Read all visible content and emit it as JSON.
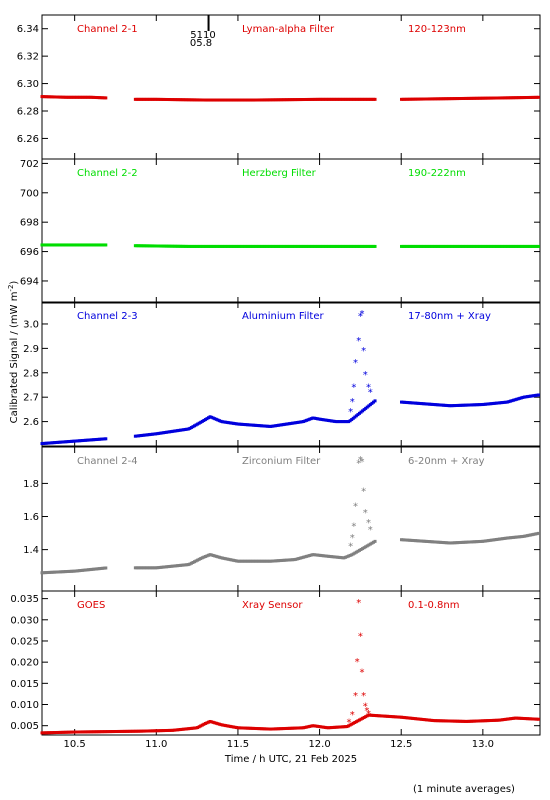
{
  "figure": {
    "ylabel_shared": "Calibrated Signal / (mW m",
    "ylabel_sup": "-2",
    "ylabel_close": ")",
    "xlabel": "Time / h UTC, 21 Feb 2025",
    "footnote": "(1 minute averages)",
    "marker_top": "5110",
    "marker_bottom": "05.8",
    "marker_time": 11.32
  },
  "chart_data": [
    {
      "type": "scatter",
      "channel": "Channel 2-1",
      "filter": "Lyman-alpha Filter",
      "band": "120-123nm",
      "color": "#dd0000",
      "ylim": [
        6.245,
        6.35
      ],
      "yticks": [
        6.26,
        6.28,
        6.3,
        6.32,
        6.34
      ],
      "yticklabels": [
        "6.26",
        "6.28",
        "6.30",
        "6.32",
        "6.34"
      ],
      "xlim": [
        10.3,
        13.35
      ],
      "gaps": [
        [
          10.7,
          10.87
        ],
        [
          12.34,
          12.5
        ]
      ],
      "series": [
        {
          "x": [
            10.3,
            10.45,
            10.6,
            10.7,
            10.87,
            11.0,
            11.3,
            11.6,
            12.0,
            12.34,
            12.5,
            12.8,
            13.1,
            13.35
          ],
          "y": [
            6.2905,
            6.29,
            6.29,
            6.2895,
            6.2885,
            6.2885,
            6.288,
            6.288,
            6.2885,
            6.2885,
            6.2885,
            6.289,
            6.2895,
            6.29
          ]
        }
      ]
    },
    {
      "type": "scatter",
      "channel": "Channel 2-2",
      "filter": "Herzberg Filter",
      "band": "190-222nm",
      "color": "#00dd00",
      "ylim": [
        692.5,
        702.3
      ],
      "yticks": [
        694,
        696,
        698,
        700,
        702
      ],
      "yticklabels": [
        "694",
        "696",
        "698",
        "700",
        "702"
      ],
      "xlim": [
        10.3,
        13.35
      ],
      "gaps": [
        [
          10.7,
          10.87
        ],
        [
          12.34,
          12.5
        ]
      ],
      "series": [
        {
          "x": [
            10.3,
            10.5,
            10.7,
            10.87,
            11.2,
            11.6,
            12.0,
            12.34,
            12.5,
            12.9,
            13.35
          ],
          "y": [
            696.45,
            696.45,
            696.45,
            696.4,
            696.35,
            696.35,
            696.35,
            696.35,
            696.35,
            696.35,
            696.35
          ]
        }
      ]
    },
    {
      "type": "scatter",
      "channel": "Channel 2-3",
      "filter": "Aluminium Filter",
      "band": "17-80nm + Xray",
      "color": "#0000dd",
      "ylim": [
        2.5,
        3.09
      ],
      "yticks": [
        2.6,
        2.7,
        2.8,
        2.9,
        3.0
      ],
      "yticklabels": [
        "2.6",
        "2.7",
        "2.8",
        "2.9",
        "3.0"
      ],
      "xlim": [
        10.3,
        13.35
      ],
      "gaps": [
        [
          10.7,
          10.87
        ],
        [
          12.34,
          12.5
        ]
      ],
      "series": [
        {
          "x": [
            10.3,
            10.5,
            10.7,
            10.87,
            11.0,
            11.2,
            11.28,
            11.33,
            11.4,
            11.5,
            11.7,
            11.9,
            11.96,
            12.0,
            12.1,
            12.18,
            12.2,
            12.34,
            12.5,
            12.8,
            13.0,
            13.15,
            13.25,
            13.35
          ],
          "y": [
            2.51,
            2.52,
            2.53,
            2.54,
            2.55,
            2.57,
            2.6,
            2.62,
            2.6,
            2.59,
            2.58,
            2.6,
            2.615,
            2.61,
            2.6,
            2.6,
            2.61,
            2.685,
            2.68,
            2.665,
            2.67,
            2.68,
            2.7,
            2.71
          ]
        },
        {
          "x": [
            12.19,
            12.2,
            12.21,
            12.22,
            12.24,
            12.25,
            12.26,
            12.27,
            12.28,
            12.3,
            12.31
          ],
          "y": [
            2.64,
            2.68,
            2.74,
            2.84,
            2.93,
            3.03,
            3.04,
            2.89,
            2.79,
            2.74,
            2.72
          ]
        }
      ]
    },
    {
      "type": "scatter",
      "channel": "Channel 2-4",
      "filter": "Zirconium Filter",
      "band": "6-20nm + Xray",
      "color": "#808080",
      "ylim": [
        1.15,
        2.02
      ],
      "yticks": [
        1.4,
        1.6,
        1.8
      ],
      "yticklabels": [
        "1.4",
        "1.6",
        "1.8"
      ],
      "xlim": [
        10.3,
        13.35
      ],
      "gaps": [
        [
          10.7,
          10.87
        ],
        [
          12.34,
          12.5
        ]
      ],
      "series": [
        {
          "x": [
            10.3,
            10.5,
            10.7,
            10.87,
            11.0,
            11.2,
            11.28,
            11.33,
            11.4,
            11.5,
            11.7,
            11.85,
            11.96,
            12.05,
            12.15,
            12.2,
            12.34,
            12.5,
            12.8,
            13.0,
            13.15,
            13.25,
            13.35
          ],
          "y": [
            1.26,
            1.27,
            1.29,
            1.29,
            1.29,
            1.31,
            1.35,
            1.37,
            1.35,
            1.33,
            1.33,
            1.34,
            1.37,
            1.36,
            1.35,
            1.37,
            1.45,
            1.46,
            1.44,
            1.45,
            1.47,
            1.48,
            1.5
          ]
        },
        {
          "x": [
            12.19,
            12.2,
            12.21,
            12.22,
            12.24,
            12.25,
            12.26,
            12.27,
            12.28,
            12.3,
            12.31
          ],
          "y": [
            1.42,
            1.47,
            1.54,
            1.66,
            1.92,
            1.94,
            1.93,
            1.75,
            1.62,
            1.56,
            1.52
          ]
        }
      ]
    },
    {
      "type": "scatter",
      "channel": "GOES",
      "filter": "Xray Sensor",
      "band": "0.1-0.8nm",
      "color": "#dd0000",
      "ylim": [
        0.0028,
        0.0368
      ],
      "yticks": [
        0.005,
        0.01,
        0.015,
        0.02,
        0.025,
        0.03,
        0.035
      ],
      "yticklabels": [
        "0.005",
        "0.010",
        "0.015",
        "0.020",
        "0.025",
        "0.030",
        "0.035"
      ],
      "xlim": [
        10.3,
        13.35
      ],
      "gaps": [],
      "series": [
        {
          "x": [
            10.3,
            10.5,
            10.7,
            10.9,
            11.1,
            11.25,
            11.3,
            11.33,
            11.4,
            11.5,
            11.7,
            11.9,
            11.96,
            12.05,
            12.17,
            12.3,
            12.5,
            12.7,
            12.9,
            13.1,
            13.2,
            13.35
          ],
          "y": [
            0.0033,
            0.0035,
            0.0036,
            0.0037,
            0.0039,
            0.0045,
            0.0055,
            0.006,
            0.0052,
            0.0045,
            0.0042,
            0.0045,
            0.005,
            0.0045,
            0.0048,
            0.0075,
            0.007,
            0.0062,
            0.006,
            0.0063,
            0.0068,
            0.0065
          ]
        },
        {
          "x": [
            12.18,
            12.2,
            12.22,
            12.23,
            12.24,
            12.25,
            12.26,
            12.27,
            12.28,
            12.29,
            12.3
          ],
          "y": [
            0.0058,
            0.0075,
            0.012,
            0.02,
            0.034,
            0.026,
            0.0175,
            0.012,
            0.0095,
            0.0085,
            0.0078
          ]
        }
      ]
    }
  ],
  "xaxis": {
    "ticks": [
      10.5,
      11.0,
      11.5,
      12.0,
      12.5,
      13.0
    ],
    "ticklabels": [
      "10.5",
      "11.0",
      "11.5",
      "12.0",
      "12.5",
      "13.0"
    ]
  }
}
